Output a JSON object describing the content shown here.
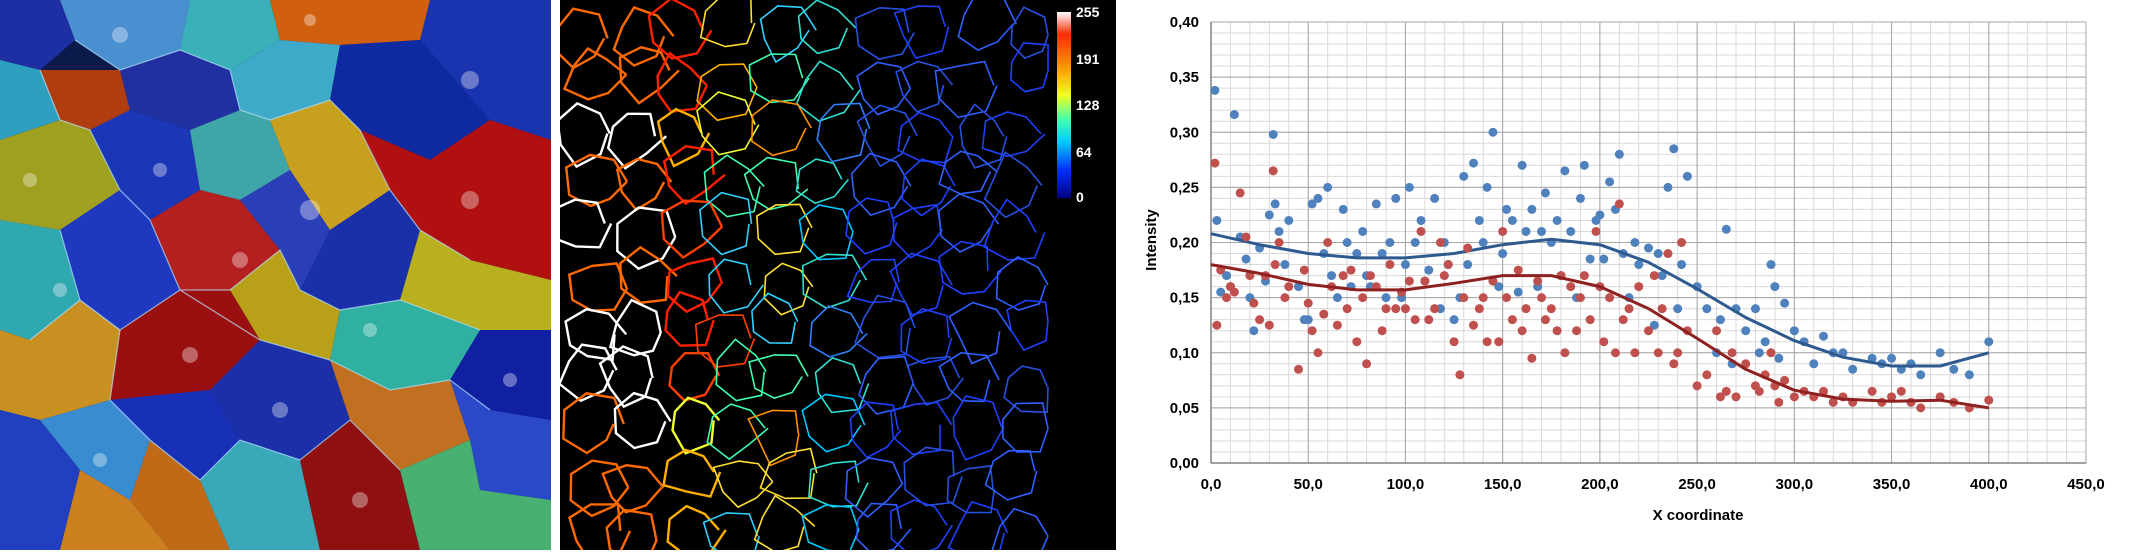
{
  "panels": {
    "segmentation": {
      "description_icon": "cell-segmentation-image"
    },
    "edges": {
      "description_icon": "cell-boundary-edge-image"
    }
  },
  "colorbar": {
    "ticks": [
      "255",
      "191",
      "128",
      "64",
      "0"
    ],
    "stops": [
      "#ffffff",
      "#ff2a00",
      "#ff9a00",
      "#f0ff20",
      "#40ffb0",
      "#00c8ff",
      "#0030ff",
      "#000080"
    ]
  },
  "chart_data": {
    "type": "scatter",
    "title": "",
    "xlabel": "X coordinate",
    "ylabel": "Intensity",
    "xlim": [
      0,
      450
    ],
    "ylim": [
      0,
      0.4
    ],
    "x_ticks": [
      "0,0",
      "50,0",
      "100,0",
      "150,0",
      "200,0",
      "250,0",
      "300,0",
      "350,0",
      "400,0",
      "450,0"
    ],
    "y_ticks": [
      "0,00",
      "0,05",
      "0,10",
      "0,15",
      "0,20",
      "0,25",
      "0,30",
      "0,35",
      "0,40"
    ],
    "grid": true,
    "legend": "none",
    "series": [
      {
        "color": "#4f81bd",
        "trend": [
          [
            0,
            0.208
          ],
          [
            25,
            0.198
          ],
          [
            50,
            0.19
          ],
          [
            75,
            0.186
          ],
          [
            100,
            0.186
          ],
          [
            125,
            0.19
          ],
          [
            150,
            0.198
          ],
          [
            175,
            0.203
          ],
          [
            200,
            0.198
          ],
          [
            225,
            0.182
          ],
          [
            250,
            0.158
          ],
          [
            275,
            0.132
          ],
          [
            300,
            0.111
          ],
          [
            325,
            0.096
          ],
          [
            350,
            0.088
          ],
          [
            375,
            0.088
          ],
          [
            400,
            0.1
          ]
        ],
        "points": [
          [
            2,
            0.338
          ],
          [
            3,
            0.22
          ],
          [
            5,
            0.155
          ],
          [
            8,
            0.17
          ],
          [
            10,
            0.16
          ],
          [
            12,
            0.316
          ],
          [
            15,
            0.205
          ],
          [
            18,
            0.185
          ],
          [
            20,
            0.15
          ],
          [
            22,
            0.12
          ],
          [
            25,
            0.195
          ],
          [
            28,
            0.165
          ],
          [
            30,
            0.225
          ],
          [
            32,
            0.298
          ],
          [
            33,
            0.235
          ],
          [
            35,
            0.21
          ],
          [
            38,
            0.18
          ],
          [
            40,
            0.22
          ],
          [
            45,
            0.16
          ],
          [
            48,
            0.13
          ],
          [
            50,
            0.13
          ],
          [
            52,
            0.235
          ],
          [
            55,
            0.24
          ],
          [
            58,
            0.19
          ],
          [
            60,
            0.25
          ],
          [
            62,
            0.17
          ],
          [
            65,
            0.15
          ],
          [
            68,
            0.23
          ],
          [
            70,
            0.2
          ],
          [
            72,
            0.16
          ],
          [
            75,
            0.19
          ],
          [
            78,
            0.21
          ],
          [
            80,
            0.17
          ],
          [
            82,
            0.16
          ],
          [
            85,
            0.235
          ],
          [
            88,
            0.19
          ],
          [
            90,
            0.15
          ],
          [
            92,
            0.2
          ],
          [
            95,
            0.24
          ],
          [
            98,
            0.15
          ],
          [
            100,
            0.18
          ],
          [
            102,
            0.25
          ],
          [
            105,
            0.2
          ],
          [
            108,
            0.22
          ],
          [
            110,
            0.165
          ],
          [
            112,
            0.175
          ],
          [
            115,
            0.24
          ],
          [
            118,
            0.14
          ],
          [
            120,
            0.2
          ],
          [
            122,
            0.18
          ],
          [
            125,
            0.13
          ],
          [
            128,
            0.15
          ],
          [
            130,
            0.26
          ],
          [
            132,
            0.18
          ],
          [
            135,
            0.272
          ],
          [
            138,
            0.22
          ],
          [
            140,
            0.2
          ],
          [
            142,
            0.25
          ],
          [
            145,
            0.3
          ],
          [
            148,
            0.16
          ],
          [
            150,
            0.19
          ],
          [
            152,
            0.23
          ],
          [
            155,
            0.22
          ],
          [
            158,
            0.155
          ],
          [
            160,
            0.27
          ],
          [
            162,
            0.21
          ],
          [
            165,
            0.23
          ],
          [
            168,
            0.16
          ],
          [
            170,
            0.21
          ],
          [
            172,
            0.245
          ],
          [
            175,
            0.2
          ],
          [
            178,
            0.22
          ],
          [
            180,
            0.17
          ],
          [
            182,
            0.265
          ],
          [
            185,
            0.21
          ],
          [
            188,
            0.15
          ],
          [
            190,
            0.24
          ],
          [
            192,
            0.27
          ],
          [
            195,
            0.185
          ],
          [
            198,
            0.22
          ],
          [
            200,
            0.225
          ],
          [
            202,
            0.185
          ],
          [
            205,
            0.255
          ],
          [
            208,
            0.23
          ],
          [
            210,
            0.28
          ],
          [
            212,
            0.19
          ],
          [
            215,
            0.15
          ],
          [
            218,
            0.2
          ],
          [
            220,
            0.18
          ],
          [
            225,
            0.195
          ],
          [
            228,
            0.125
          ],
          [
            230,
            0.19
          ],
          [
            232,
            0.17
          ],
          [
            235,
            0.25
          ],
          [
            238,
            0.285
          ],
          [
            240,
            0.14
          ],
          [
            242,
            0.18
          ],
          [
            245,
            0.26
          ],
          [
            250,
            0.16
          ],
          [
            255,
            0.14
          ],
          [
            260,
            0.1
          ],
          [
            262,
            0.13
          ],
          [
            265,
            0.212
          ],
          [
            268,
            0.09
          ],
          [
            270,
            0.14
          ],
          [
            275,
            0.12
          ],
          [
            280,
            0.14
          ],
          [
            282,
            0.1
          ],
          [
            285,
            0.11
          ],
          [
            288,
            0.18
          ],
          [
            290,
            0.16
          ],
          [
            292,
            0.095
          ],
          [
            295,
            0.145
          ],
          [
            300,
            0.12
          ],
          [
            305,
            0.11
          ],
          [
            310,
            0.09
          ],
          [
            315,
            0.115
          ],
          [
            320,
            0.1
          ],
          [
            325,
            0.1
          ],
          [
            330,
            0.085
          ],
          [
            340,
            0.095
          ],
          [
            345,
            0.09
          ],
          [
            350,
            0.095
          ],
          [
            355,
            0.085
          ],
          [
            360,
            0.09
          ],
          [
            365,
            0.08
          ],
          [
            375,
            0.1
          ],
          [
            382,
            0.085
          ],
          [
            390,
            0.08
          ],
          [
            400,
            0.11
          ]
        ]
      },
      {
        "color": "#c0504d",
        "trend": [
          [
            0,
            0.18
          ],
          [
            25,
            0.172
          ],
          [
            50,
            0.162
          ],
          [
            75,
            0.157
          ],
          [
            100,
            0.157
          ],
          [
            125,
            0.163
          ],
          [
            150,
            0.17
          ],
          [
            175,
            0.17
          ],
          [
            200,
            0.16
          ],
          [
            225,
            0.14
          ],
          [
            250,
            0.113
          ],
          [
            275,
            0.085
          ],
          [
            300,
            0.066
          ],
          [
            325,
            0.058
          ],
          [
            350,
            0.056
          ],
          [
            375,
            0.057
          ],
          [
            400,
            0.05
          ]
        ],
        "points": [
          [
            2,
            0.272
          ],
          [
            3,
            0.125
          ],
          [
            5,
            0.175
          ],
          [
            8,
            0.15
          ],
          [
            10,
            0.16
          ],
          [
            12,
            0.155
          ],
          [
            15,
            0.245
          ],
          [
            18,
            0.205
          ],
          [
            20,
            0.17
          ],
          [
            22,
            0.145
          ],
          [
            25,
            0.13
          ],
          [
            28,
            0.17
          ],
          [
            30,
            0.125
          ],
          [
            32,
            0.265
          ],
          [
            33,
            0.18
          ],
          [
            35,
            0.2
          ],
          [
            38,
            0.15
          ],
          [
            40,
            0.16
          ],
          [
            45,
            0.085
          ],
          [
            48,
            0.175
          ],
          [
            50,
            0.145
          ],
          [
            52,
            0.12
          ],
          [
            55,
            0.1
          ],
          [
            58,
            0.135
          ],
          [
            60,
            0.2
          ],
          [
            62,
            0.16
          ],
          [
            65,
            0.125
          ],
          [
            68,
            0.17
          ],
          [
            70,
            0.14
          ],
          [
            72,
            0.175
          ],
          [
            75,
            0.11
          ],
          [
            78,
            0.15
          ],
          [
            80,
            0.09
          ],
          [
            82,
            0.17
          ],
          [
            85,
            0.16
          ],
          [
            88,
            0.12
          ],
          [
            90,
            0.14
          ],
          [
            92,
            0.18
          ],
          [
            95,
            0.14
          ],
          [
            98,
            0.155
          ],
          [
            100,
            0.14
          ],
          [
            102,
            0.165
          ],
          [
            105,
            0.13
          ],
          [
            108,
            0.21
          ],
          [
            110,
            0.165
          ],
          [
            112,
            0.13
          ],
          [
            115,
            0.14
          ],
          [
            118,
            0.2
          ],
          [
            120,
            0.17
          ],
          [
            122,
            0.18
          ],
          [
            125,
            0.11
          ],
          [
            128,
            0.08
          ],
          [
            130,
            0.15
          ],
          [
            132,
            0.195
          ],
          [
            135,
            0.125
          ],
          [
            138,
            0.14
          ],
          [
            140,
            0.15
          ],
          [
            142,
            0.11
          ],
          [
            145,
            0.165
          ],
          [
            148,
            0.11
          ],
          [
            150,
            0.21
          ],
          [
            152,
            0.15
          ],
          [
            155,
            0.13
          ],
          [
            158,
            0.175
          ],
          [
            160,
            0.12
          ],
          [
            162,
            0.14
          ],
          [
            165,
            0.095
          ],
          [
            168,
            0.165
          ],
          [
            170,
            0.15
          ],
          [
            172,
            0.13
          ],
          [
            175,
            0.14
          ],
          [
            178,
            0.12
          ],
          [
            180,
            0.17
          ],
          [
            182,
            0.1
          ],
          [
            185,
            0.16
          ],
          [
            188,
            0.12
          ],
          [
            190,
            0.15
          ],
          [
            192,
            0.17
          ],
          [
            195,
            0.13
          ],
          [
            198,
            0.21
          ],
          [
            200,
            0.16
          ],
          [
            202,
            0.11
          ],
          [
            205,
            0.15
          ],
          [
            208,
            0.1
          ],
          [
            210,
            0.235
          ],
          [
            212,
            0.13
          ],
          [
            215,
            0.14
          ],
          [
            218,
            0.1
          ],
          [
            220,
            0.16
          ],
          [
            225,
            0.12
          ],
          [
            228,
            0.17
          ],
          [
            230,
            0.1
          ],
          [
            232,
            0.14
          ],
          [
            235,
            0.19
          ],
          [
            238,
            0.09
          ],
          [
            240,
            0.1
          ],
          [
            242,
            0.2
          ],
          [
            245,
            0.12
          ],
          [
            250,
            0.07
          ],
          [
            255,
            0.08
          ],
          [
            260,
            0.12
          ],
          [
            262,
            0.06
          ],
          [
            265,
            0.065
          ],
          [
            268,
            0.1
          ],
          [
            270,
            0.06
          ],
          [
            275,
            0.09
          ],
          [
            280,
            0.07
          ],
          [
            282,
            0.065
          ],
          [
            285,
            0.08
          ],
          [
            288,
            0.1
          ],
          [
            290,
            0.07
          ],
          [
            292,
            0.055
          ],
          [
            295,
            0.075
          ],
          [
            300,
            0.06
          ],
          [
            305,
            0.065
          ],
          [
            310,
            0.06
          ],
          [
            315,
            0.065
          ],
          [
            320,
            0.055
          ],
          [
            325,
            0.06
          ],
          [
            330,
            0.055
          ],
          [
            340,
            0.065
          ],
          [
            345,
            0.055
          ],
          [
            350,
            0.06
          ],
          [
            355,
            0.065
          ],
          [
            360,
            0.055
          ],
          [
            365,
            0.05
          ],
          [
            375,
            0.06
          ],
          [
            382,
            0.055
          ],
          [
            390,
            0.05
          ],
          [
            400,
            0.057
          ]
        ]
      }
    ]
  }
}
